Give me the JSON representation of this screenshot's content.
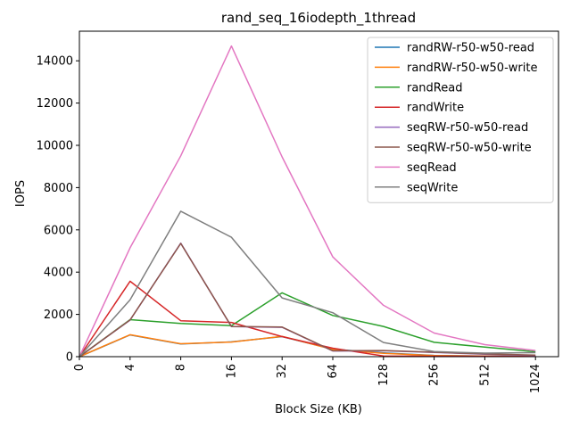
{
  "chart_data": {
    "type": "line",
    "title": "rand_seq_16iodepth_1thread",
    "xlabel": "Block Size (KB)",
    "ylabel": "IOPS",
    "categories": [
      "0",
      "4",
      "8",
      "16",
      "32",
      "64",
      "128",
      "256",
      "512",
      "1024"
    ],
    "ylim": [
      0,
      15400
    ],
    "yticks": [
      0,
      2000,
      4000,
      6000,
      8000,
      10000,
      12000,
      14000
    ],
    "x_tick_rotation": "vertical",
    "grid": false,
    "legend_position": "top-right",
    "series": [
      {
        "name": "randRW-r50-w50-read",
        "color": "#1f77b4",
        "values": [
          0,
          1030,
          600,
          700,
          950,
          350,
          180,
          60,
          30,
          15
        ]
      },
      {
        "name": "randRW-r50-w50-write",
        "color": "#ff7f0e",
        "values": [
          0,
          1040,
          610,
          690,
          960,
          340,
          160,
          55,
          25,
          12
        ]
      },
      {
        "name": "randRead",
        "color": "#2ca02c",
        "values": [
          0,
          1750,
          1570,
          1470,
          3020,
          1950,
          1430,
          680,
          450,
          230
        ]
      },
      {
        "name": "randWrite",
        "color": "#d62728",
        "values": [
          0,
          3570,
          1700,
          1620,
          950,
          400,
          30,
          20,
          15,
          10
        ]
      },
      {
        "name": "seqRW-r50-w50-read",
        "color": "#9467bd",
        "values": [
          0,
          1730,
          5370,
          1420,
          1390,
          270,
          280,
          200,
          120,
          60
        ]
      },
      {
        "name": "seqRW-r50-w50-write",
        "color": "#8c564b",
        "values": [
          0,
          1740,
          5360,
          1430,
          1400,
          280,
          290,
          210,
          130,
          70
        ]
      },
      {
        "name": "seqRead",
        "color": "#e377c2",
        "values": [
          0,
          5150,
          9500,
          14700,
          9450,
          4720,
          2430,
          1120,
          570,
          290
        ]
      },
      {
        "name": "seqWrite",
        "color": "#7f7f7f",
        "values": [
          0,
          2690,
          6880,
          5650,
          2780,
          2080,
          670,
          240,
          170,
          190
        ]
      }
    ]
  }
}
